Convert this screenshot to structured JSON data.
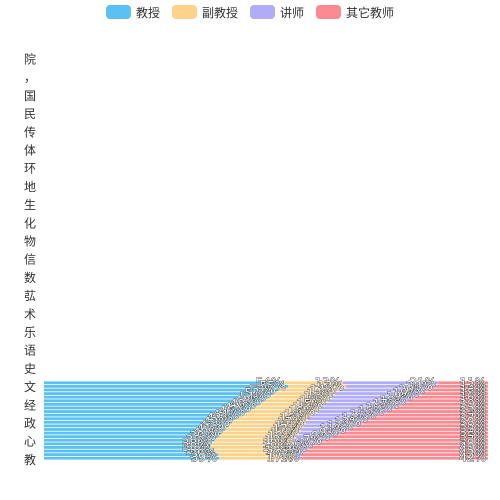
{
  "chart_data": {
    "type": "bar",
    "stacked": true,
    "orientation": "horizontal",
    "legend_position": "top-center",
    "grid": false,
    "y_axis_vertical_text": "院，国民传体环地生化物信数苰术乐语史文经政心教",
    "series": [
      {
        "name": "教授",
        "color": "#5cc1f2",
        "values": [
          53,
          55,
          50,
          48,
          46,
          44,
          42,
          40,
          38,
          36,
          34,
          33,
          32,
          31,
          30,
          29,
          28,
          27,
          27,
          28,
          29,
          30
        ]
      },
      {
        "name": "副教授",
        "color": "#fdd28a",
        "values": [
          13,
          13,
          13,
          13,
          13,
          13,
          13,
          13,
          13,
          13,
          13,
          13,
          13,
          13,
          13,
          13,
          13,
          13,
          13,
          13,
          13,
          13
        ]
      },
      {
        "name": "讲师",
        "color": "#b1acf8",
        "values": [
          21,
          20,
          19,
          18,
          17,
          16,
          15,
          14,
          13,
          12,
          11,
          10,
          9,
          8,
          7,
          6,
          5,
          4,
          3,
          2,
          1,
          1
        ]
      },
      {
        "name": "其它教师",
        "color": "#fb8a92",
        "values": [
          11,
          12,
          13,
          14,
          15,
          16,
          17,
          18,
          19,
          20,
          21,
          22,
          23,
          24,
          25,
          26,
          27,
          28,
          29,
          30,
          31,
          32
        ]
      }
    ],
    "label_format": "percent"
  }
}
